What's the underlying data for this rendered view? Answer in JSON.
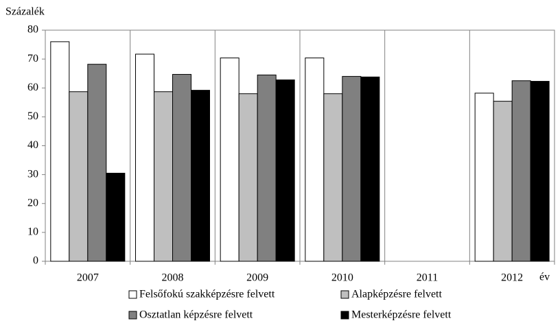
{
  "chart_data": {
    "type": "bar",
    "y_label": "Százalék",
    "x_label": "év",
    "categories": [
      "2007",
      "2008",
      "2009",
      "2010",
      "2011",
      "2012"
    ],
    "series": [
      {
        "name": "Felsőfokú szakképzésre felvett",
        "color": "#ffffff",
        "values": [
          76,
          71.7,
          70.4,
          70.4,
          null,
          58.2
        ]
      },
      {
        "name": "Alapképzésre felvett",
        "color": "#bfbfbf",
        "values": [
          58.7,
          58.7,
          58,
          58,
          null,
          55.4
        ]
      },
      {
        "name": "Osztatlan képzésre felvett",
        "color": "#808080",
        "values": [
          68.2,
          64.7,
          64.5,
          64,
          null,
          62.5
        ]
      },
      {
        "name": "Mesterképzésre felvett",
        "color": "#000000",
        "values": [
          30.5,
          59.2,
          62.8,
          63.8,
          null,
          62.3
        ]
      }
    ],
    "ylim": [
      0,
      80
    ],
    "yticks": [
      0,
      10,
      20,
      30,
      40,
      50,
      60,
      70,
      80
    ],
    "grid": "vertical"
  }
}
